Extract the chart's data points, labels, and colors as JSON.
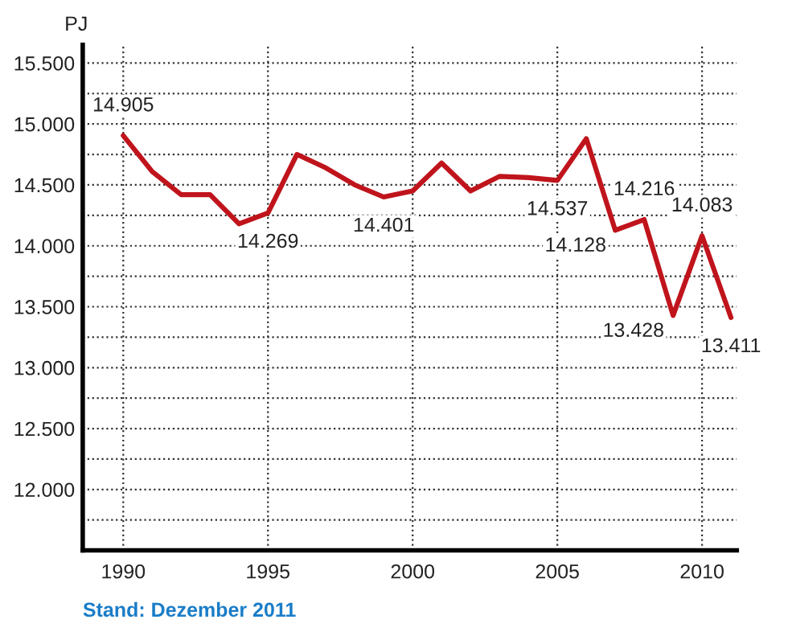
{
  "chart_data": {
    "type": "line",
    "ylabel": "PJ",
    "x": [
      1990,
      1991,
      1992,
      1993,
      1994,
      1995,
      1996,
      1997,
      1998,
      1999,
      2000,
      2001,
      2002,
      2003,
      2004,
      2005,
      2006,
      2007,
      2008,
      2009,
      2010,
      2011
    ],
    "series": [
      {
        "color": "#c0141c",
        "values": [
          14905,
          14610,
          14420,
          14420,
          14180,
          14269,
          14750,
          14640,
          14500,
          14401,
          14450,
          14680,
          14450,
          14570,
          14560,
          14537,
          14880,
          14128,
          14216,
          13428,
          14083,
          13411
        ],
        "value_labels": [
          "14.905",
          null,
          null,
          null,
          null,
          "14.269",
          null,
          null,
          null,
          "14.401",
          null,
          null,
          null,
          null,
          null,
          "14.537",
          null,
          "14.128",
          "14.216",
          "13.428",
          "14.083",
          "13.411"
        ]
      }
    ],
    "xlim": [
      1988.6,
      2011.2
    ],
    "xticks": [
      1990,
      1995,
      2000,
      2005,
      2010
    ],
    "ylim": [
      11500,
      15650
    ],
    "yticks": [
      {
        "value": 11750,
        "label": null
      },
      {
        "value": 12000,
        "label": "12.000"
      },
      {
        "value": 12250,
        "label": null
      },
      {
        "value": 12500,
        "label": "12.500"
      },
      {
        "value": 12750,
        "label": null
      },
      {
        "value": 13000,
        "label": "13.000"
      },
      {
        "value": 13250,
        "label": null
      },
      {
        "value": 13500,
        "label": "13.500"
      },
      {
        "value": 13750,
        "label": null
      },
      {
        "value": 14000,
        "label": "14.000"
      },
      {
        "value": 14250,
        "label": null
      },
      {
        "value": 14500,
        "label": "14.500"
      },
      {
        "value": 14750,
        "label": null
      },
      {
        "value": 15000,
        "label": "15.000"
      },
      {
        "value": 15250,
        "label": null
      },
      {
        "value": 15500,
        "label": "15.500"
      }
    ],
    "grid": true,
    "line_style": "solid",
    "marker": "none",
    "annotations": [
      "Stand: Dezember 2011"
    ]
  }
}
